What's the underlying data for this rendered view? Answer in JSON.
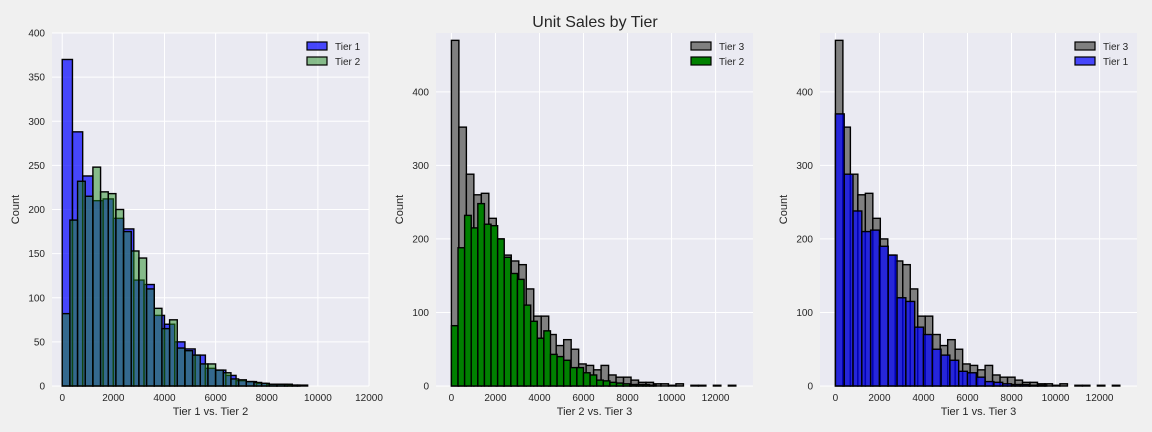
{
  "title": "Unit Sales by Tier",
  "colors": {
    "tier1": "#0000ff",
    "tier2_green": "#228b22",
    "tier2_darkgreen": "#008000",
    "tier3": "#808080",
    "axes_bg": "#eaeaf2",
    "grid": "#ffffff",
    "figure_bg": "#f0f0f0"
  },
  "chart_data": [
    {
      "type": "histogram",
      "xlabel": "Tier 1 vs. Tier 2",
      "ylabel": "Count",
      "xlim": [
        -400,
        12000
      ],
      "ylim": [
        0,
        400
      ],
      "xticks": [
        0,
        2000,
        4000,
        6000,
        8000,
        10000,
        12000
      ],
      "yticks": [
        0,
        50,
        100,
        150,
        200,
        250,
        300,
        350,
        400
      ],
      "legend": {
        "position": "upper right",
        "entries": [
          "Tier 1",
          "Tier 2"
        ]
      },
      "series": [
        {
          "name": "Tier 1",
          "color": "#0000ff",
          "alpha": 0.7,
          "bins": [
            0,
            400,
            800,
            1200,
            1600,
            2000,
            2400,
            2800,
            3200,
            3600,
            4000,
            4400,
            4800,
            5200,
            5600,
            6000,
            6400,
            6800,
            7200,
            7600,
            8000,
            8400,
            8800,
            9200,
            9600
          ],
          "values": [
            370,
            288,
            238,
            210,
            212,
            190,
            178,
            120,
            115,
            80,
            70,
            50,
            42,
            35,
            20,
            18,
            12,
            6,
            5,
            3,
            2,
            2,
            1,
            1
          ]
        },
        {
          "name": "Tier 2",
          "color": "#228b22",
          "alpha": 0.5,
          "bins": [
            0,
            300,
            600,
            900,
            1200,
            1500,
            1800,
            2100,
            2400,
            2700,
            3000,
            3300,
            3600,
            3900,
            4200,
            4500,
            4800,
            5100,
            5400,
            5700,
            6000,
            6300,
            6600,
            6900,
            7200,
            7500,
            7800,
            8100,
            8400,
            8700,
            9000,
            9300
          ],
          "values": [
            82,
            188,
            232,
            215,
            248,
            220,
            218,
            200,
            175,
            153,
            145,
            110,
            88,
            65,
            75,
            43,
            40,
            35,
            25,
            25,
            18,
            15,
            8,
            7,
            5,
            4,
            3,
            2,
            2,
            2,
            1
          ]
        }
      ]
    },
    {
      "type": "histogram",
      "xlabel": "Tier 2 vs. Tier 3",
      "ylabel": "Count",
      "xlim": [
        -700,
        13700
      ],
      "ylim": [
        0,
        480
      ],
      "xticks": [
        0,
        2000,
        4000,
        6000,
        8000,
        10000,
        12000
      ],
      "yticks": [
        0,
        100,
        200,
        300,
        400
      ],
      "legend": {
        "position": "upper right",
        "entries": [
          "Tier 3",
          "Tier 2"
        ]
      },
      "series": [
        {
          "name": "Tier 3",
          "color": "#808080",
          "alpha": 1.0,
          "bins": [
            0,
            340,
            680,
            1020,
            1360,
            1700,
            2040,
            2380,
            2720,
            3060,
            3400,
            3740,
            4080,
            4420,
            4760,
            5100,
            5440,
            5780,
            6120,
            6460,
            6800,
            7140,
            7480,
            7820,
            8160,
            8500,
            8840,
            9180,
            9520,
            9860,
            10200,
            10540,
            10880,
            11220,
            11560,
            11900,
            12240,
            12580,
            12920
          ],
          "values": [
            470,
            352,
            288,
            260,
            262,
            228,
            200,
            178,
            170,
            165,
            132,
            95,
            95,
            70,
            55,
            63,
            50,
            30,
            28,
            22,
            28,
            15,
            12,
            12,
            8,
            5,
            5,
            3,
            3,
            1,
            3,
            0,
            1,
            1,
            0,
            1,
            0,
            1
          ]
        },
        {
          "name": "Tier 2",
          "color": "#008000",
          "alpha": 1.0,
          "bins": [
            0,
            300,
            600,
            900,
            1200,
            1500,
            1800,
            2100,
            2400,
            2700,
            3000,
            3300,
            3600,
            3900,
            4200,
            4500,
            4800,
            5100,
            5400,
            5700,
            6000,
            6300,
            6600,
            6900,
            7200,
            7500,
            7800,
            8100,
            8400,
            8700,
            9000,
            9300
          ],
          "values": [
            82,
            188,
            232,
            215,
            248,
            220,
            218,
            200,
            175,
            153,
            145,
            110,
            88,
            65,
            75,
            43,
            40,
            35,
            25,
            25,
            18,
            15,
            8,
            7,
            5,
            4,
            3,
            2,
            2,
            2,
            1
          ]
        }
      ]
    },
    {
      "type": "histogram",
      "xlabel": "Tier 1 vs. Tier 3",
      "ylabel": "Count",
      "xlim": [
        -700,
        13700
      ],
      "ylim": [
        0,
        480
      ],
      "xticks": [
        0,
        2000,
        4000,
        6000,
        8000,
        10000,
        12000
      ],
      "yticks": [
        0,
        100,
        200,
        300,
        400
      ],
      "legend": {
        "position": "upper right",
        "entries": [
          "Tier 3",
          "Tier 1"
        ]
      },
      "series": [
        {
          "name": "Tier 3",
          "color": "#808080",
          "alpha": 1.0,
          "bins": [
            0,
            340,
            680,
            1020,
            1360,
            1700,
            2040,
            2380,
            2720,
            3060,
            3400,
            3740,
            4080,
            4420,
            4760,
            5100,
            5440,
            5780,
            6120,
            6460,
            6800,
            7140,
            7480,
            7820,
            8160,
            8500,
            8840,
            9180,
            9520,
            9860,
            10200,
            10540,
            10880,
            11220,
            11560,
            11900,
            12240,
            12580,
            12920
          ],
          "values": [
            470,
            352,
            288,
            260,
            262,
            228,
            200,
            178,
            170,
            165,
            132,
            95,
            95,
            70,
            55,
            63,
            50,
            30,
            28,
            22,
            28,
            15,
            12,
            12,
            8,
            5,
            5,
            3,
            3,
            1,
            3,
            0,
            1,
            1,
            0,
            1,
            0,
            1
          ]
        },
        {
          "name": "Tier 1",
          "color": "#0000ff",
          "alpha": 0.7,
          "bins": [
            0,
            400,
            800,
            1200,
            1600,
            2000,
            2400,
            2800,
            3200,
            3600,
            4000,
            4400,
            4800,
            5200,
            5600,
            6000,
            6400,
            6800,
            7200,
            7600,
            8000,
            8400,
            8800,
            9200,
            9600
          ],
          "values": [
            370,
            288,
            238,
            210,
            212,
            190,
            178,
            120,
            115,
            80,
            70,
            50,
            42,
            35,
            20,
            18,
            12,
            6,
            5,
            3,
            2,
            2,
            1,
            1
          ]
        }
      ]
    }
  ]
}
